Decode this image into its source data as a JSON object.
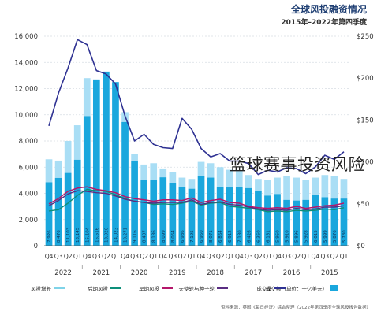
{
  "header": {
    "title": "全球风投融资情况",
    "subtitle": "2015年–2022年第四季度"
  },
  "watermark": "篮球赛事投资风险",
  "footer_text": "资料来源：英国《每日经济》综合整理（2022年第四季度全球风投报告数据）",
  "colors": {
    "title": "#1f3f73",
    "deal_value_bar": "#1aa7dd",
    "deal_value_light": "#a9def5",
    "deal_count": "#2e3192",
    "early": "#b5176b",
    "late": "#0d8f7a",
    "seed": "#5a2d82",
    "growth": "#7fd3e8",
    "grid": "#d7dde4",
    "axis_text": "#333333"
  },
  "chart_data": {
    "type": "bar",
    "title": "全球风投融资情况",
    "subtitle": "2015年–2022年第四季度",
    "left_axis": {
      "ylim": [
        0,
        16000
      ],
      "ticks": [
        "0",
        "2,000",
        "4,000",
        "6,000",
        "8,000",
        "10,000",
        "12,000",
        "14,000",
        "16,000"
      ]
    },
    "right_axis": {
      "ylim": [
        0,
        250
      ],
      "ticks": [
        "$0",
        "$50",
        "$100",
        "$150",
        "$200",
        "$250"
      ]
    },
    "quarters": [
      "Q4",
      "Q3",
      "Q2",
      "Q1",
      "Q4",
      "Q3",
      "Q2",
      "Q1",
      "Q4",
      "Q3",
      "Q2",
      "Q1",
      "Q4",
      "Q3",
      "Q2",
      "Q1",
      "Q4",
      "Q3",
      "Q2",
      "Q1",
      "Q4",
      "Q3",
      "Q2",
      "Q1",
      "Q4",
      "Q3",
      "Q2",
      "Q1",
      "Q4",
      "Q3",
      "Q2",
      "Q1"
    ],
    "years": [
      "2022",
      "2021",
      "2020",
      "2019",
      "2018",
      "2017",
      "2016",
      "2015"
    ],
    "bar_labels": [
      "7,926",
      "8,476",
      "11,103",
      "13,145",
      "15,104",
      "15,516",
      "13,920",
      "14,023",
      "10,271",
      "9,116",
      "8,437",
      "8,136",
      "8,099",
      "8,064",
      "6,986",
      "7,195",
      "6,950",
      "8,071",
      "6,864",
      "6,912",
      "7,130",
      "6,426",
      "6,360",
      "6,181",
      "5,950",
      "5,910",
      "5,896",
      "5,928",
      "6,015",
      "5,999",
      "5,876",
      "5,780"
    ],
    "series": [
      {
        "name": "成交额（单位：十亿美元）",
        "type": "bar",
        "values": [
          4844,
          5176,
          5556,
          6564,
          9900,
          12700,
          13300,
          12500,
          9450,
          6475,
          5025,
          5050,
          5225,
          4775,
          4500,
          4350,
          5350,
          5200,
          4500,
          4450,
          4475,
          4400,
          4150,
          3825,
          3950,
          3500,
          3450,
          3500,
          3850,
          3700,
          3600,
          3600
        ]
      },
      {
        "name": "成交量",
        "type": "line",
        "axis": "right",
        "values": [
          143,
          182,
          212,
          246,
          240,
          209,
          205,
          193,
          155,
          125,
          133,
          121,
          117,
          116,
          152,
          139,
          116,
          106,
          110,
          101,
          101,
          98,
          85,
          90,
          88,
          93,
          92,
          86,
          94,
          108,
          103,
          112
        ]
      },
      {
        "name": "早期风投",
        "type": "line",
        "axis": "left",
        "values": [
          3200,
          3600,
          4150,
          4400,
          4500,
          4300,
          4200,
          4050,
          3750,
          3600,
          3500,
          3400,
          3500,
          3500,
          3450,
          3650,
          3300,
          3450,
          3550,
          3300,
          3250,
          3000,
          2900,
          2850,
          2900,
          2850,
          3000,
          2850,
          2950,
          3050,
          3100,
          3250
        ]
      },
      {
        "name": "后期风投",
        "type": "line",
        "axis": "left",
        "values": [
          2650,
          2750,
          3250,
          3850,
          4300,
          4200,
          4150,
          3900,
          3600,
          3400,
          3300,
          3150,
          3200,
          3150,
          3250,
          3400,
          3100,
          3250,
          3300,
          3000,
          2950,
          2850,
          2750,
          2600,
          2650,
          2600,
          2700,
          2650,
          2700,
          2800,
          2750,
          2900
        ]
      },
      {
        "name": "天使轮与种子轮",
        "type": "line",
        "axis": "left",
        "values": [
          3050,
          3450,
          3950,
          4200,
          4150,
          4050,
          4000,
          3800,
          3550,
          3400,
          3300,
          3250,
          3300,
          3300,
          3300,
          3500,
          3150,
          3300,
          3350,
          3150,
          3100,
          2950,
          2800,
          2700,
          2750,
          2700,
          2850,
          2750,
          2800,
          2950,
          2950,
          3050
        ]
      },
      {
        "name": "风投增长",
        "type": "line",
        "axis": "left",
        "values": [
          6600,
          6500,
          8000,
          9200,
          12800,
          12000,
          11200,
          10800,
          10200,
          7000,
          6200,
          6300,
          5900,
          5650,
          5200,
          5100,
          6400,
          6300,
          6000,
          5800,
          5700,
          5400,
          5100,
          5000,
          5200,
          5300,
          5200,
          5000,
          5200,
          5400,
          5300,
          5100
        ]
      }
    ],
    "legend": [
      "成交额（单位：十亿美元）",
      "成交量",
      "天使轮与种子轮",
      "早期风投",
      "后期风投",
      "风投增长"
    ],
    "legend_position": "bottom",
    "grid": true
  }
}
